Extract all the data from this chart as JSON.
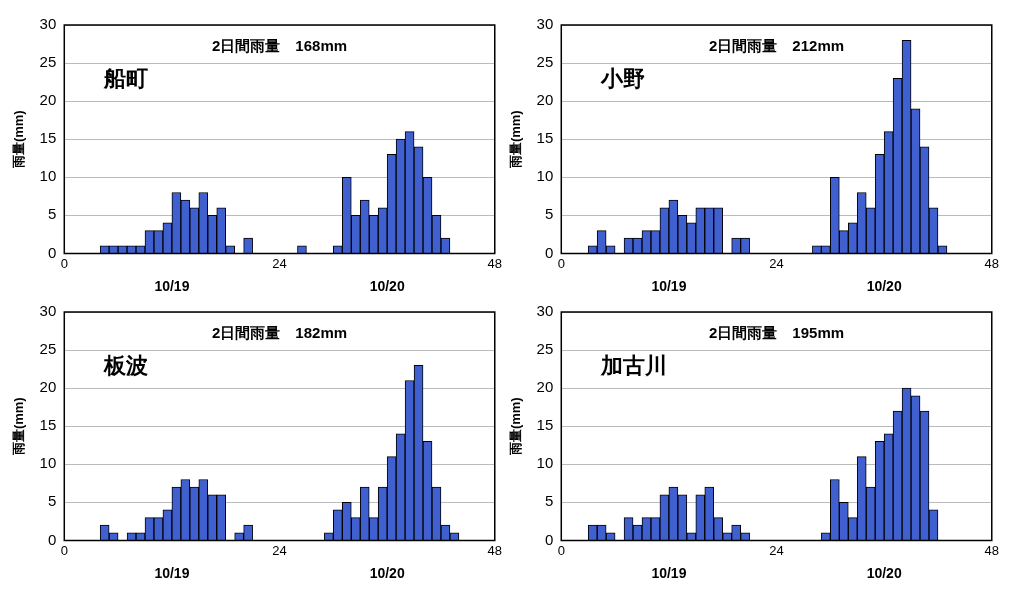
{
  "chart_data": [
    {
      "type": "histogram",
      "title": "船町",
      "ylabel": "雨量(mm)",
      "annotations": [
        "2日間雨量　168mm",
        "10/19",
        "10/20"
      ],
      "bins": [
        0,
        1,
        2,
        3,
        4,
        5,
        6,
        7,
        8,
        9,
        10,
        11,
        12,
        13,
        14,
        15,
        16,
        17,
        18,
        19,
        20,
        21,
        22,
        23,
        24,
        25,
        26,
        27,
        28,
        29,
        30,
        31,
        32,
        33,
        34,
        35,
        36,
        37,
        38,
        39,
        40,
        41,
        42,
        43,
        44,
        45,
        46,
        47,
        48
      ],
      "color": "#4060d0",
      "values": [
        0,
        0,
        0,
        0,
        1,
        1,
        1,
        1,
        1,
        3,
        3,
        4,
        8,
        7,
        6,
        8,
        5,
        6,
        1,
        0,
        2,
        0,
        0,
        0,
        0,
        0,
        1,
        0,
        0,
        0,
        1,
        10,
        5,
        7,
        5,
        6,
        13,
        15,
        16,
        14,
        10,
        5,
        2,
        0,
        0,
        0,
        0,
        0
      ],
      "xlim": [
        0,
        48
      ],
      "xticks": [
        0,
        24,
        48
      ],
      "ylim": [
        0,
        30
      ],
      "yticks": [
        0,
        5,
        10,
        15,
        20,
        25,
        30
      ],
      "grid": "y"
    },
    {
      "type": "histogram",
      "title": "小野",
      "ylabel": "雨量(mm)",
      "annotations": [
        "2日間雨量　212mm",
        "10/19",
        "10/20"
      ],
      "bins": [
        0,
        1,
        2,
        3,
        4,
        5,
        6,
        7,
        8,
        9,
        10,
        11,
        12,
        13,
        14,
        15,
        16,
        17,
        18,
        19,
        20,
        21,
        22,
        23,
        24,
        25,
        26,
        27,
        28,
        29,
        30,
        31,
        32,
        33,
        34,
        35,
        36,
        37,
        38,
        39,
        40,
        41,
        42,
        43,
        44,
        45,
        46,
        47,
        48
      ],
      "color": "#4060d0",
      "values": [
        0,
        0,
        0,
        1,
        3,
        1,
        0,
        2,
        2,
        3,
        3,
        6,
        7,
        5,
        4,
        6,
        6,
        6,
        0,
        2,
        2,
        0,
        0,
        0,
        0,
        0,
        0,
        0,
        1,
        1,
        10,
        3,
        4,
        8,
        6,
        13,
        16,
        23,
        28,
        19,
        14,
        6,
        1,
        0,
        0,
        0,
        0,
        0
      ],
      "xlim": [
        0,
        48
      ],
      "xticks": [
        0,
        24,
        48
      ],
      "ylim": [
        0,
        30
      ],
      "yticks": [
        0,
        5,
        10,
        15,
        20,
        25,
        30
      ],
      "grid": "y"
    },
    {
      "type": "histogram",
      "title": "板波",
      "ylabel": "雨量(mm)",
      "annotations": [
        "2日間雨量　182mm",
        "10/19",
        "10/20"
      ],
      "bins": [
        0,
        1,
        2,
        3,
        4,
        5,
        6,
        7,
        8,
        9,
        10,
        11,
        12,
        13,
        14,
        15,
        16,
        17,
        18,
        19,
        20,
        21,
        22,
        23,
        24,
        25,
        26,
        27,
        28,
        29,
        30,
        31,
        32,
        33,
        34,
        35,
        36,
        37,
        38,
        39,
        40,
        41,
        42,
        43,
        44,
        45,
        46,
        47,
        48
      ],
      "color": "#4060d0",
      "values": [
        0,
        0,
        0,
        0,
        2,
        1,
        0,
        1,
        1,
        3,
        3,
        4,
        7,
        8,
        7,
        8,
        6,
        6,
        0,
        1,
        2,
        0,
        0,
        0,
        0,
        0,
        0,
        0,
        0,
        1,
        4,
        5,
        3,
        7,
        3,
        7,
        11,
        14,
        21,
        23,
        13,
        7,
        2,
        1,
        0,
        0,
        0,
        0
      ],
      "xlim": [
        0,
        48
      ],
      "xticks": [
        0,
        24,
        48
      ],
      "ylim": [
        0,
        30
      ],
      "yticks": [
        0,
        5,
        10,
        15,
        20,
        25,
        30
      ],
      "grid": "y"
    },
    {
      "type": "histogram",
      "title": "加古川",
      "ylabel": "雨量(mm)",
      "annotations": [
        "2日間雨量　195mm",
        "10/19",
        "10/20"
      ],
      "bins": [
        0,
        1,
        2,
        3,
        4,
        5,
        6,
        7,
        8,
        9,
        10,
        11,
        12,
        13,
        14,
        15,
        16,
        17,
        18,
        19,
        20,
        21,
        22,
        23,
        24,
        25,
        26,
        27,
        28,
        29,
        30,
        31,
        32,
        33,
        34,
        35,
        36,
        37,
        38,
        39,
        40,
        41,
        42,
        43,
        44,
        45,
        46,
        47,
        48
      ],
      "color": "#4060d0",
      "values": [
        0,
        0,
        0,
        2,
        2,
        1,
        0,
        3,
        2,
        3,
        3,
        6,
        7,
        6,
        1,
        6,
        7,
        3,
        1,
        2,
        1,
        0,
        0,
        0,
        0,
        0,
        0,
        0,
        0,
        1,
        8,
        5,
        3,
        11,
        7,
        13,
        14,
        17,
        20,
        19,
        17,
        4,
        0,
        0,
        0,
        0,
        0,
        0
      ],
      "xlim": [
        0,
        48
      ],
      "xticks": [
        0,
        24,
        48
      ],
      "ylim": [
        0,
        30
      ],
      "yticks": [
        0,
        5,
        10,
        15,
        20,
        25,
        30
      ],
      "grid": "y"
    }
  ]
}
